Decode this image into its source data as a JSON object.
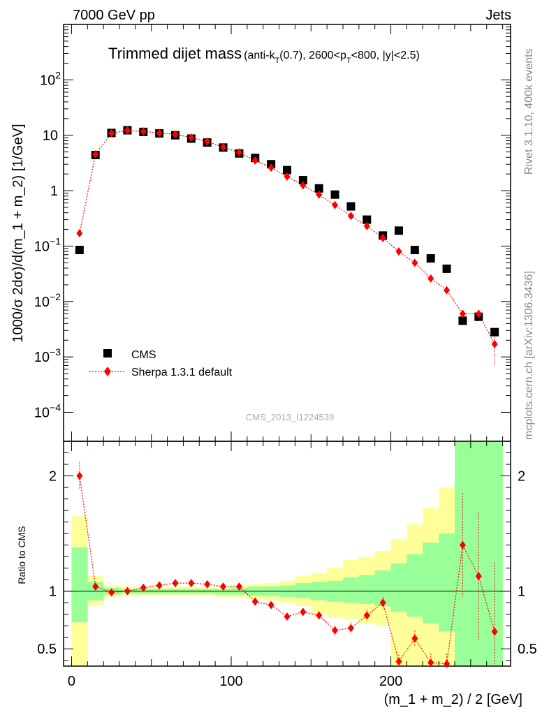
{
  "header": {
    "left": "7000 GeV pp",
    "right": "Jets"
  },
  "title_main": "Trimmed dijet mass",
  "title_sub": "(anti-kT(0.7), 2600<pT<800, |y|<2.5)",
  "side_right_top": "Rivet 3.1.10,  400k events",
  "side_right_bottom": "mcplots.cern.ch [arXiv:1306.3436]",
  "watermark": "CMS_2013_I1224539",
  "colors": {
    "data": "#000000",
    "mc": "#ff0000",
    "band_inner": "#99ff99",
    "band_outer": "#ffff99"
  },
  "chart_data": [
    {
      "type": "scatter",
      "ylabel": "1000/σ 2dσ)/d(m_1 + m_2) [1/GeV]",
      "yscale": "log",
      "ylim": [
        3e-05,
        1000
      ],
      "xlim": [
        -5,
        275
      ],
      "y_tick_labels": [
        "10^-4",
        "10^-3",
        "10^-2",
        "10^-1",
        "1",
        "10",
        "10^2"
      ],
      "legend": {
        "position": "bottom-left",
        "entries": [
          "CMS",
          "Sherpa 1.3.1 default"
        ]
      },
      "x": [
        5,
        15,
        25,
        35,
        45,
        55,
        65,
        75,
        85,
        95,
        105,
        115,
        125,
        135,
        145,
        155,
        165,
        175,
        185,
        195,
        205,
        215,
        225,
        235,
        245,
        255,
        265
      ],
      "series": [
        {
          "name": "CMS",
          "values": [
            0.085,
            4.4,
            11.0,
            12.3,
            11.5,
            10.8,
            10.0,
            8.7,
            7.4,
            6.0,
            4.7,
            3.9,
            3.0,
            2.35,
            1.55,
            1.1,
            0.85,
            0.52,
            0.3,
            0.155,
            0.19,
            0.085,
            0.06,
            0.039,
            0.0045,
            0.0053,
            0.0028
          ]
        },
        {
          "name": "Sherpa 1.3.1 default",
          "values": [
            0.17,
            4.55,
            10.9,
            12.2,
            11.7,
            11.0,
            10.4,
            9.1,
            7.7,
            6.1,
            4.9,
            3.5,
            2.6,
            1.8,
            1.25,
            0.85,
            0.55,
            0.35,
            0.23,
            0.14,
            0.08,
            0.05,
            0.026,
            0.016,
            0.006,
            0.006,
            0.0017
          ]
        }
      ]
    },
    {
      "type": "line",
      "xlabel": "(m_1 + m_2) / 2 [GeV]",
      "ylabel": "Ratio to CMS",
      "ylim": [
        0.35,
        2.3
      ],
      "xlim": [
        -5,
        275
      ],
      "x_ticks": [
        0,
        100,
        200
      ],
      "y_ticks": [
        0.5,
        1,
        2
      ],
      "bins": [
        0,
        10,
        20,
        30,
        40,
        50,
        60,
        70,
        80,
        90,
        100,
        110,
        120,
        130,
        140,
        150,
        160,
        170,
        180,
        190,
        200,
        210,
        220,
        230,
        240,
        250,
        260,
        270
      ],
      "band_inner_low": [
        0.73,
        0.92,
        0.97,
        0.98,
        0.98,
        0.98,
        0.98,
        0.98,
        0.98,
        0.97,
        0.97,
        0.96,
        0.96,
        0.95,
        0.94,
        0.92,
        0.91,
        0.9,
        0.89,
        0.87,
        0.82,
        0.78,
        0.72,
        0.65,
        0.35,
        0.35,
        0.35
      ],
      "band_inner_high": [
        1.38,
        1.08,
        1.03,
        1.02,
        1.02,
        1.02,
        1.02,
        1.02,
        1.02,
        1.02,
        1.03,
        1.04,
        1.04,
        1.05,
        1.07,
        1.08,
        1.09,
        1.12,
        1.14,
        1.18,
        1.24,
        1.32,
        1.42,
        1.5,
        2.3,
        2.3,
        2.3
      ],
      "band_outer_low": [
        0.35,
        0.88,
        0.95,
        0.96,
        0.96,
        0.96,
        0.96,
        0.96,
        0.96,
        0.95,
        0.95,
        0.93,
        0.92,
        0.9,
        0.87,
        0.8,
        0.77,
        0.76,
        0.72,
        0.7,
        0.35,
        0.35,
        0.35,
        0.35,
        0.35,
        0.35,
        0.35
      ],
      "band_outer_high": [
        1.65,
        1.13,
        1.05,
        1.04,
        1.04,
        1.04,
        1.04,
        1.04,
        1.04,
        1.04,
        1.05,
        1.06,
        1.07,
        1.09,
        1.13,
        1.16,
        1.2,
        1.27,
        1.3,
        1.35,
        1.45,
        1.58,
        1.72,
        1.9,
        2.3,
        2.3,
        2.3
      ],
      "series": [
        {
          "name": "Sherpa 1.3.1 default",
          "x": [
            5,
            15,
            25,
            35,
            45,
            55,
            65,
            75,
            85,
            95,
            105,
            115,
            125,
            135,
            145,
            155,
            165,
            175,
            185,
            195,
            205,
            215,
            225,
            235,
            245,
            255,
            265
          ],
          "values": [
            2.0,
            1.04,
            0.99,
            1.0,
            1.03,
            1.05,
            1.07,
            1.07,
            1.06,
            1.04,
            1.04,
            0.91,
            0.88,
            0.78,
            0.82,
            0.79,
            0.66,
            0.68,
            0.79,
            0.9,
            0.39,
            0.59,
            0.38,
            0.37,
            1.4,
            1.13,
            0.65
          ],
          "err": [
            0.12,
            0.02,
            0.01,
            0.01,
            0.01,
            0.01,
            0.01,
            0.01,
            0.01,
            0.01,
            0.01,
            0.02,
            0.02,
            0.02,
            0.03,
            0.03,
            0.04,
            0.05,
            0.05,
            0.05,
            0.06,
            0.07,
            0.08,
            0.09,
            0.45,
            0.55,
            0.6
          ]
        }
      ]
    }
  ]
}
